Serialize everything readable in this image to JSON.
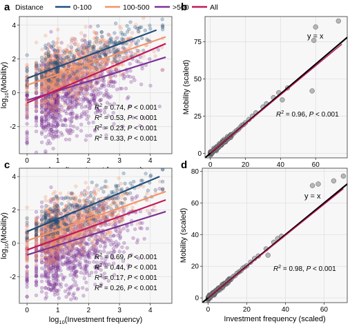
{
  "legend": {
    "title": "Distance",
    "items": [
      {
        "label": "0-100",
        "color": "#1f4e79"
      },
      {
        "label": "100-500",
        "color": "#f0956a"
      },
      {
        "label": ">500",
        "color": "#7b3294"
      },
      {
        "label": "All",
        "color": "#c2185b"
      }
    ]
  },
  "chart_data": [
    {
      "panel": "a",
      "type": "scatter",
      "xlabel": "log10(Investment frequency)",
      "ylabel": "log10(Mobility)",
      "xlim": [
        -0.25,
        4.7
      ],
      "ylim": [
        -3.6,
        4.5
      ],
      "xticks": [
        0,
        1,
        2,
        3,
        4
      ],
      "yticks": [
        -2,
        0,
        2,
        4
      ],
      "grid": true,
      "legend_position": "top",
      "series": [
        {
          "name": "0-100",
          "color": "#1f4e79",
          "fit": [
            [
              0,
              0.85
            ],
            [
              4.2,
              3.7
            ]
          ],
          "r2": "0.74",
          "p": "0.001"
        },
        {
          "name": "100-500",
          "color": "#f0956a",
          "fit": [
            [
              0,
              0.45
            ],
            [
              4.5,
              3.3
            ]
          ],
          "r2": "0.53",
          "p": "0.001"
        },
        {
          "name": ">500",
          "color": "#7b3294",
          "fit": [
            [
              0,
              -0.45
            ],
            [
              4.5,
              2.1
            ]
          ],
          "r2": "0.23",
          "p": "0.001"
        },
        {
          "name": "All",
          "color": "#c2185b",
          "fit": [
            [
              0,
              -0.6
            ],
            [
              4.5,
              2.9
            ]
          ],
          "r2": "0.33",
          "p": "0.001"
        }
      ]
    },
    {
      "panel": "b",
      "type": "scatter",
      "xlabel": "Investment frequency (scaled)",
      "ylabel": "Mobility (scaled)",
      "xlim": [
        -3,
        78
      ],
      "ylim": [
        -3,
        92
      ],
      "xticks": [
        0,
        20,
        40,
        60
      ],
      "yticks": [
        0,
        25,
        50,
        75
      ],
      "grid": true,
      "identity_label": "y = x",
      "r2": "0.96",
      "p": "0.001",
      "points": [
        [
          0.3,
          0.2
        ],
        [
          0.6,
          0.7
        ],
        [
          1,
          0.8
        ],
        [
          1.5,
          1.4
        ],
        [
          2,
          2.1
        ],
        [
          2.5,
          2.3
        ],
        [
          3,
          3.1
        ],
        [
          3.5,
          3.2
        ],
        [
          4,
          3.9
        ],
        [
          4.5,
          4.3
        ],
        [
          5,
          5.2
        ],
        [
          5.5,
          5.1
        ],
        [
          6,
          6.3
        ],
        [
          6.5,
          6.2
        ],
        [
          7,
          7.1
        ],
        [
          7.5,
          7.4
        ],
        [
          8,
          8.2
        ],
        [
          8.5,
          8.1
        ],
        [
          9,
          9.3
        ],
        [
          9.5,
          9.2
        ],
        [
          10,
          10.4
        ],
        [
          10.5,
          10.1
        ],
        [
          11,
          11.2
        ],
        [
          12,
          12.6
        ],
        [
          13,
          13.1
        ],
        [
          14,
          14.3
        ],
        [
          15,
          15.4
        ],
        [
          16,
          16.2
        ],
        [
          17,
          17.5
        ],
        [
          18,
          18.9
        ],
        [
          19,
          19.4
        ],
        [
          20,
          20.6
        ],
        [
          22,
          22.8
        ],
        [
          24,
          25.1
        ],
        [
          26,
          27.3
        ],
        [
          30,
          31.2
        ],
        [
          32,
          33.4
        ],
        [
          36,
          37.5
        ],
        [
          39,
          40.8
        ],
        [
          41,
          36
        ],
        [
          60,
          85
        ],
        [
          58,
          42
        ],
        [
          59,
          76
        ],
        [
          73,
          89
        ],
        [
          44,
          44
        ]
      ],
      "fit": [
        [
          0,
          0.2
        ],
        [
          75,
          73.5
        ]
      ],
      "fit_color": "#c2185b",
      "line_color": "#000000"
    },
    {
      "panel": "c",
      "type": "scatter",
      "xlabel": "log10(Investment frequency)",
      "ylabel": "log10(Mobility)",
      "xlim": [
        -0.25,
        4.7
      ],
      "ylim": [
        -3.6,
        4.5
      ],
      "xticks": [
        0,
        1,
        2,
        3,
        4
      ],
      "yticks": [
        -2,
        0,
        2,
        4
      ],
      "grid": true,
      "series": [
        {
          "name": "0-100",
          "color": "#1f4e79",
          "fit": [
            [
              0,
              0.7
            ],
            [
              4.3,
              4.0
            ]
          ],
          "r2": "0.69",
          "p": "0.001"
        },
        {
          "name": "100-500",
          "color": "#f0956a",
          "fit": [
            [
              0,
              0.15
            ],
            [
              4.5,
              3.1
            ]
          ],
          "r2": "0.44",
          "p": "0.001"
        },
        {
          "name": ">500",
          "color": "#7b3294",
          "fit": [
            [
              0,
              -0.7
            ],
            [
              4.5,
              1.9
            ]
          ],
          "r2": "0.17",
          "p": "0.001"
        },
        {
          "name": "All",
          "color": "#c2185b",
          "fit": [
            [
              0,
              -0.4
            ],
            [
              4.5,
              2.6
            ]
          ],
          "r2": "0.26",
          "p": "0.001"
        }
      ]
    },
    {
      "panel": "d",
      "type": "scatter",
      "xlabel": "Investment frequency (scaled)",
      "ylabel": "Mobility (scaled)",
      "xlim": [
        -3,
        72
      ],
      "ylim": [
        -3,
        82
      ],
      "xticks": [
        0,
        20,
        40,
        60
      ],
      "yticks": [
        0,
        20,
        40,
        60,
        80
      ],
      "grid": true,
      "identity_label": "y = x",
      "r2": "0.98",
      "p": "0.001",
      "points": [
        [
          0.3,
          0.2
        ],
        [
          0.6,
          0.6
        ],
        [
          1,
          1.1
        ],
        [
          1.5,
          1.4
        ],
        [
          2,
          2.2
        ],
        [
          2.5,
          2.4
        ],
        [
          3,
          3.1
        ],
        [
          3.5,
          3.5
        ],
        [
          4,
          4.1
        ],
        [
          4.5,
          4.4
        ],
        [
          5,
          5.3
        ],
        [
          5.5,
          5.4
        ],
        [
          6,
          6.1
        ],
        [
          6.5,
          6.6
        ],
        [
          7,
          7.2
        ],
        [
          7.5,
          7.3
        ],
        [
          8,
          8.4
        ],
        [
          8.5,
          8.6
        ],
        [
          9,
          9.1
        ],
        [
          9.5,
          9.7
        ],
        [
          10,
          10.2
        ],
        [
          11,
          11.4
        ],
        [
          12,
          12.2
        ],
        [
          13,
          13.5
        ],
        [
          14,
          14.1
        ],
        [
          15,
          15.6
        ],
        [
          16,
          16.4
        ],
        [
          17,
          17.2
        ],
        [
          18,
          18.8
        ],
        [
          19,
          19.5
        ],
        [
          20,
          20.3
        ],
        [
          22,
          22.6
        ],
        [
          24,
          24.9
        ],
        [
          26,
          26.5
        ],
        [
          30,
          31
        ],
        [
          34,
          35.2
        ],
        [
          36,
          37.5
        ],
        [
          38,
          39
        ],
        [
          54,
          71
        ],
        [
          57,
          72
        ],
        [
          70,
          77
        ],
        [
          65,
          74
        ],
        [
          31,
          27
        ]
      ],
      "fit": [
        [
          0,
          0.1
        ],
        [
          70,
          69
        ]
      ],
      "fit_color": "#c2185b",
      "line_color": "#000000"
    }
  ]
}
